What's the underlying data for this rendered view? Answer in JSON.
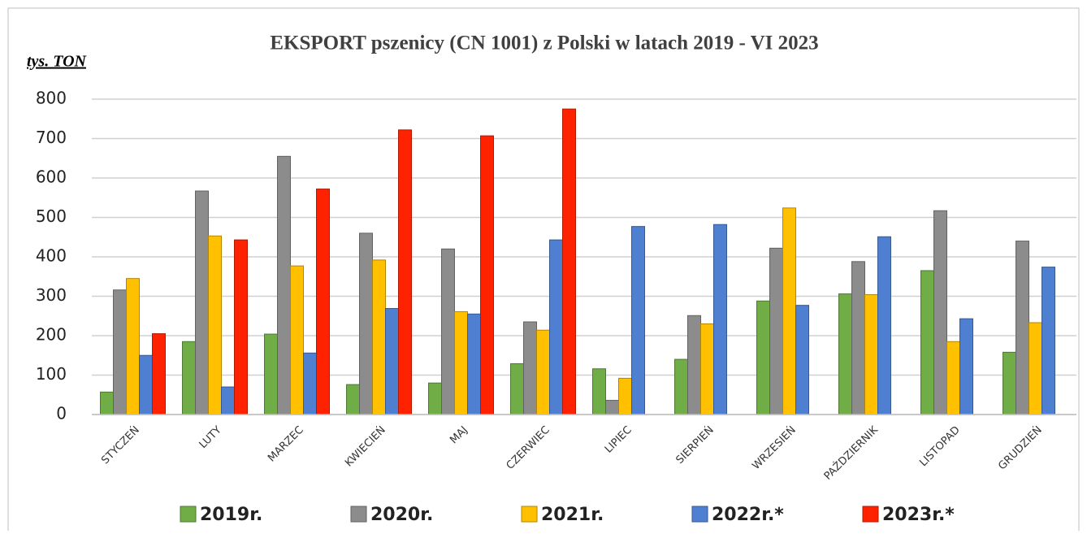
{
  "chart_data": {
    "type": "bar",
    "title": "EKSPORT pszenicy (CN 1001) z Polski w latach 2019 - VI 2023",
    "y_label": "tys. TON",
    "categories": [
      "STYCZEŃ",
      "LUTY",
      "MARZEC",
      "KWIECIEŃ",
      "MAJ",
      "CZERWIEC",
      "LIPIEC",
      "SIERPIEŃ",
      "WRZESIEŃ",
      "PAŹDZIERNIK",
      "LISTOPAD",
      "GRUDZIEŃ"
    ],
    "series": [
      {
        "name": "2019r.",
        "color": "#70ad47",
        "values": [
          57,
          185,
          204,
          76,
          80,
          129,
          116,
          140,
          288,
          306,
          365,
          158
        ]
      },
      {
        "name": "2020r.",
        "color": "#8c8c8c",
        "values": [
          316,
          567,
          655,
          460,
          420,
          235,
          36,
          251,
          422,
          388,
          517,
          440
        ]
      },
      {
        "name": "2021r.",
        "color": "#ffc000",
        "values": [
          345,
          453,
          377,
          392,
          261,
          214,
          92,
          230,
          524,
          304,
          185,
          233
        ]
      },
      {
        "name": "2022r.*",
        "color": "#4f7fd0",
        "values": [
          150,
          70,
          156,
          269,
          255,
          443,
          477,
          482,
          277,
          451,
          243,
          374
        ]
      },
      {
        "name": "2023r.*",
        "color": "#ff2200",
        "values": [
          205,
          443,
          572,
          722,
          707,
          775,
          null,
          null,
          null,
          null,
          null,
          null
        ]
      }
    ],
    "ylim": [
      0,
      800
    ],
    "yticks": [
      0,
      100,
      200,
      300,
      400,
      500,
      600,
      700,
      800
    ],
    "grid": true
  }
}
